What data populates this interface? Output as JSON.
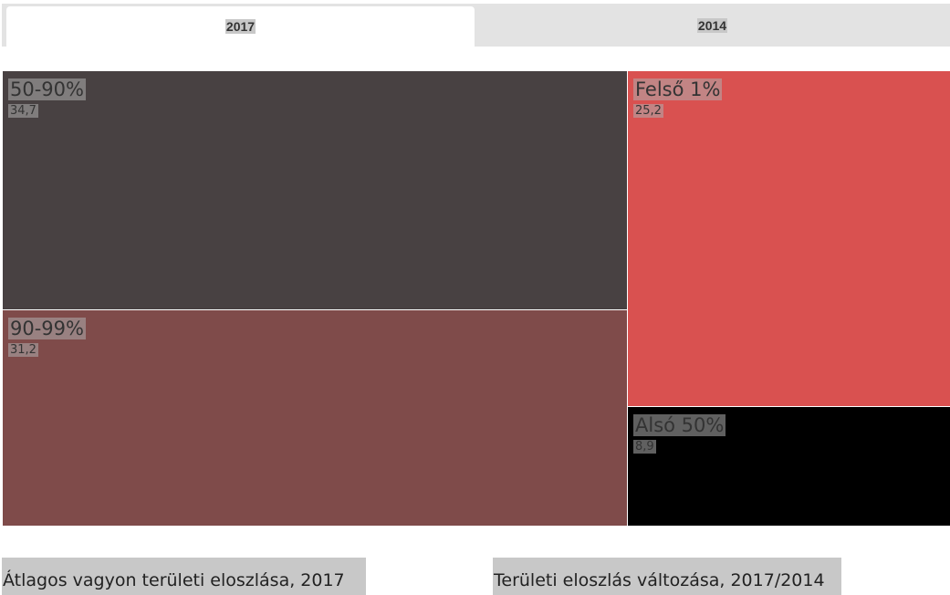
{
  "tabs": [
    {
      "label": "2017",
      "active": true
    },
    {
      "label": "2014",
      "active": false
    }
  ],
  "chart_data": {
    "type": "treemap",
    "title": "",
    "items": [
      {
        "name": "50-90%",
        "value": 34.7,
        "label": "34,7",
        "color": "#484142"
      },
      {
        "name": "90-99%",
        "value": 31.2,
        "label": "31,2",
        "color": "#7f4b4a"
      },
      {
        "name": "Felső 1%",
        "value": 25.2,
        "label": "25,2",
        "color": "#d95150"
      },
      {
        "name": "Alsó 50%",
        "value": 8.9,
        "label": "8,9",
        "color": "#000000"
      }
    ]
  },
  "footer": {
    "left_title": "Átlagos vagyon területi eloszlása, 2017",
    "right_title": "Területi eloszlás változása, 2017/2014"
  }
}
